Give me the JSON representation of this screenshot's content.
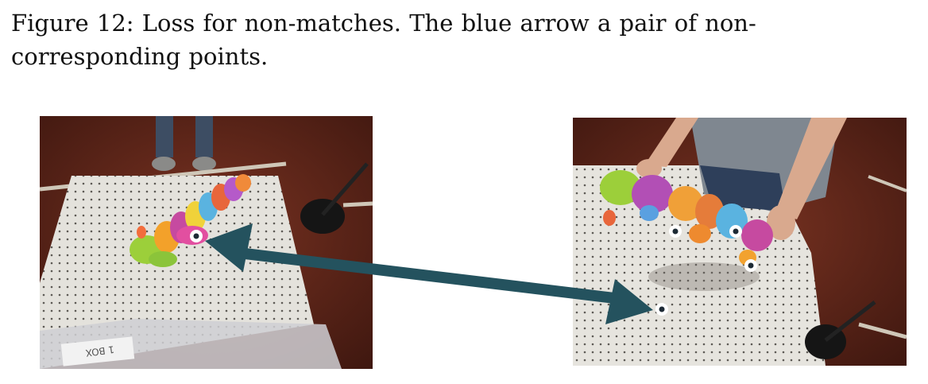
{
  "caption": {
    "label": "Figure 12:",
    "text": "Loss for non-matches. The blue arrow a pair of non-corresponding points."
  },
  "figure": {
    "left_image": {
      "points": 1,
      "box_label": "1 BOX"
    },
    "right_image": {
      "points": 4
    },
    "arrow": {
      "color": "#24525e",
      "direction": "double-headed"
    },
    "point_fill": "#ffffff",
    "point_center": "#1d2a35"
  }
}
